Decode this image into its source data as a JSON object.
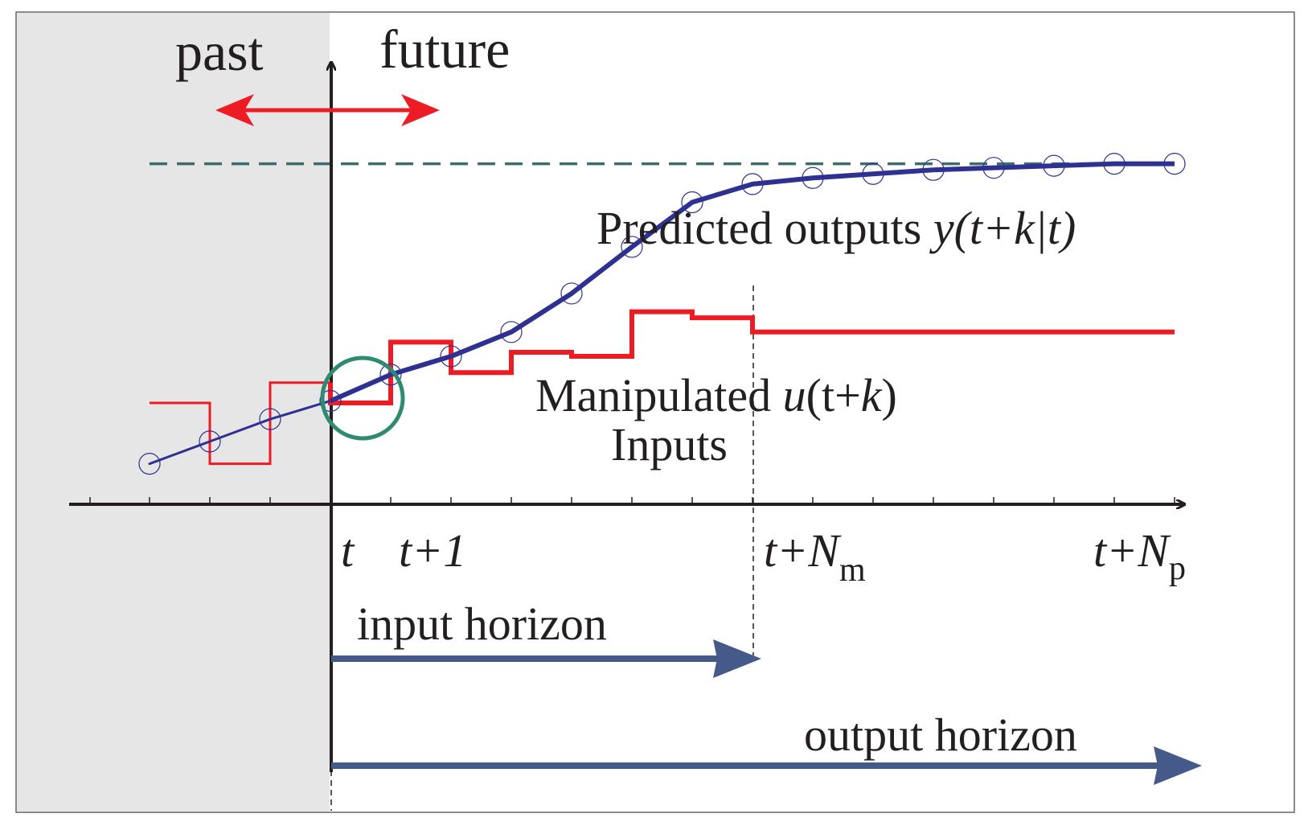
{
  "labels": {
    "past": "past",
    "future": "future",
    "predicted_text": "Predicted outputs ",
    "predicted_math": "y(t+k|t)",
    "manipulated_text": "Manipulated ",
    "manipulated_u": "u",
    "manipulated_open": "(t+",
    "manipulated_k": "k",
    "manipulated_close": ")",
    "inputs": "Inputs",
    "tick_t": "t",
    "tick_t1": "t+1",
    "tick_tNm_base": "t+N",
    "tick_tNm_sub": "m",
    "tick_tNp_base": "t+N",
    "tick_tNp_sub": "p",
    "input_horizon": "input horizon",
    "output_horizon": "output horizon"
  },
  "colors": {
    "past_region": "#e6e6e7",
    "axis": "#231f20",
    "predicted_line": "#2e3192",
    "predicted_markers": "#2e3192",
    "manipulated_input": "#ed1c24",
    "setpoint_dashed": "#3f6b6b",
    "past_future_arrow": "#ed1c24",
    "highlight_circle": "#2f8a72",
    "horizon_arrows": "#465a8a"
  },
  "series": {
    "predicted_outputs": [
      0.2,
      0.31,
      0.42,
      0.51,
      0.64,
      0.73,
      0.85,
      1.04,
      1.27,
      1.49,
      1.58,
      1.61,
      1.63,
      1.65,
      1.66,
      1.67,
      1.68,
      1.68
    ],
    "manipulated_inputs": [
      0.5,
      0.2,
      0.6,
      0.5,
      0.8,
      0.65,
      0.75,
      0.73,
      0.95,
      0.92,
      0.85,
      0.85,
      0.85,
      0.85,
      0.85,
      0.85,
      0.85
    ],
    "setpoint": 1.68
  }
}
